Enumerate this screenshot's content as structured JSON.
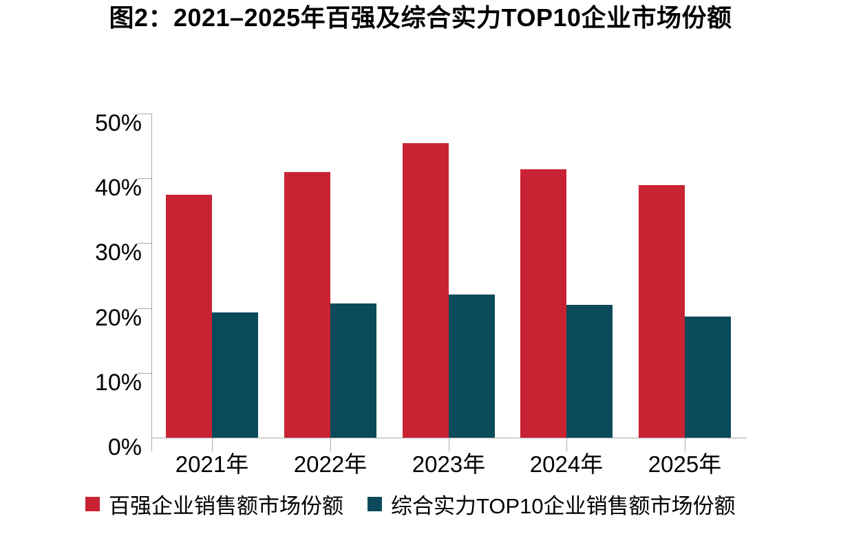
{
  "title": "图2：2021–2025年百强及综合实力TOP10企业市场份额",
  "colors": {
    "series1_red": "#c92333",
    "series2_teal": "#0a4a5a",
    "axis_line": "#a9a9a9",
    "text": "#000000",
    "background": "#ffffff"
  },
  "chart_data": {
    "type": "bar",
    "title": "图2：2021–2025年百强及综合实力TOP10企业市场份额",
    "categories": [
      "2021年",
      "2022年",
      "2023年",
      "2024年",
      "2025年"
    ],
    "series": [
      {
        "name": "百强企业销售额市场份额",
        "color": "#c92333",
        "values": [
          37.5,
          41.0,
          45.4,
          41.4,
          39.0
        ]
      },
      {
        "name": "综合实力TOP10企业销售额市场份额",
        "color": "#0a4a5a",
        "values": [
          19.3,
          20.7,
          22.1,
          20.5,
          18.7
        ]
      }
    ],
    "xlabel": "",
    "ylabel": "",
    "y_ticks": [
      "0%",
      "10%",
      "20%",
      "30%",
      "40%",
      "50%"
    ],
    "ylim": [
      0,
      50
    ],
    "grid": false,
    "legend_position": "bottom"
  }
}
